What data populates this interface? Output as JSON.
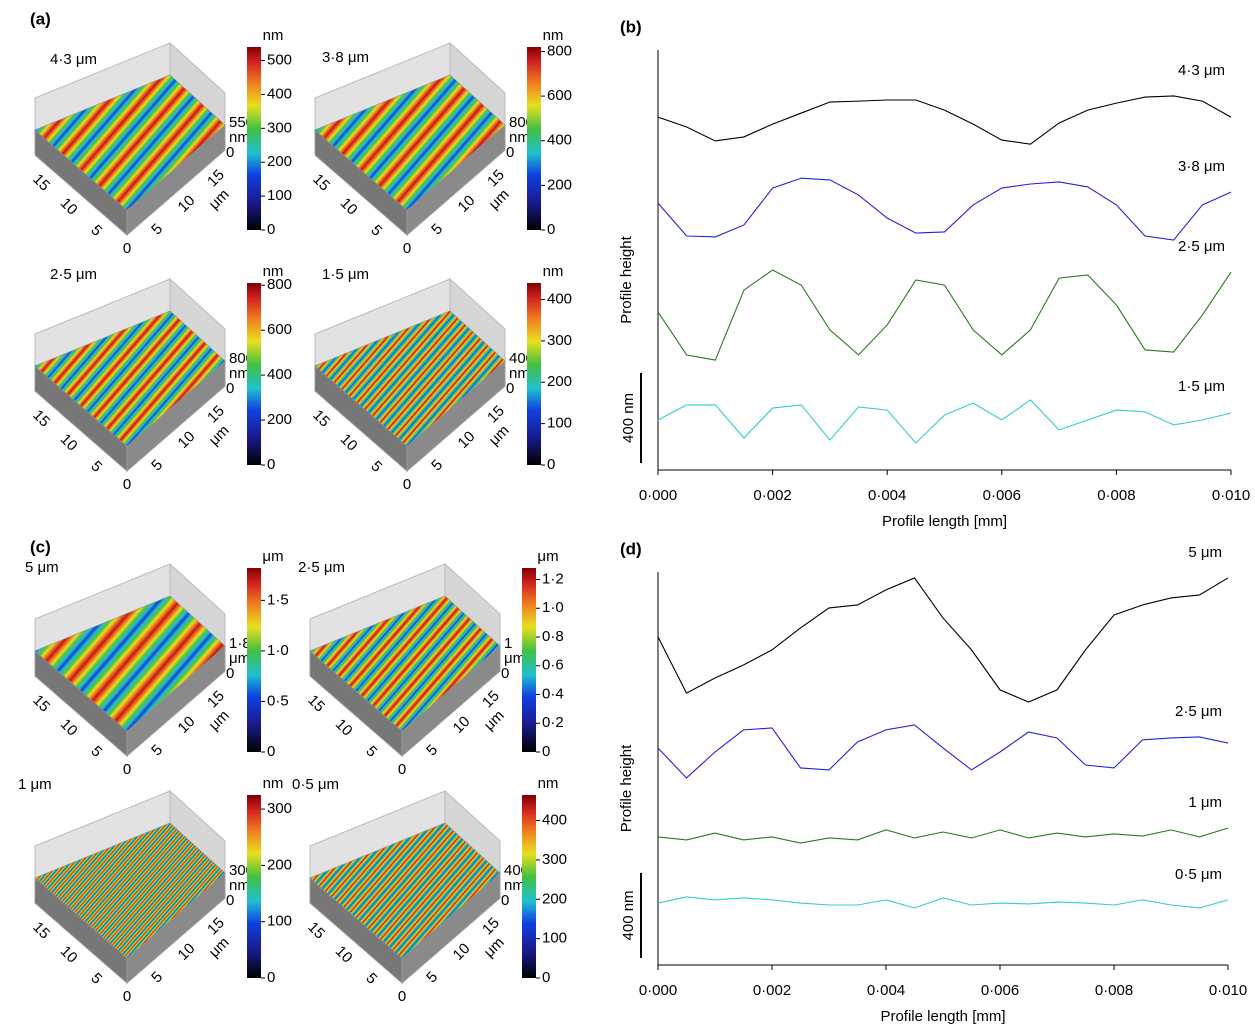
{
  "panels": [
    {
      "label": "(a)",
      "surfaces": [
        {
          "title": "4·3 μm",
          "unit": "nm",
          "lim": [
            0,
            540
          ],
          "ticks": [
            0,
            100,
            200,
            300,
            400,
            500
          ],
          "z_ticks": [
            550,
            0
          ],
          "z_unit": "nm",
          "left_ticks": [
            15,
            10,
            5
          ],
          "origin": 0,
          "right_ticks": [
            5,
            10,
            15
          ],
          "axis_unit": "μm"
        },
        {
          "title": "3·8 μm",
          "unit": "nm",
          "lim": [
            0,
            820
          ],
          "ticks": [
            0,
            200,
            400,
            600,
            800
          ],
          "z_ticks": [
            800,
            0
          ],
          "z_unit": "nm",
          "left_ticks": [
            15,
            10,
            5
          ],
          "origin": 0,
          "right_ticks": [
            5,
            10,
            15
          ],
          "axis_unit": "μm"
        },
        {
          "title": "2·5 μm",
          "unit": "nm",
          "lim": [
            0,
            810
          ],
          "ticks": [
            0,
            200,
            400,
            600,
            800
          ],
          "z_ticks": [
            800,
            0
          ],
          "z_unit": "nm",
          "left_ticks": [
            15,
            10,
            5
          ],
          "origin": 0,
          "right_ticks": [
            5,
            10,
            15
          ],
          "axis_unit": "μm"
        },
        {
          "title": "1·5 μm",
          "unit": "nm",
          "lim": [
            0,
            440
          ],
          "ticks": [
            0,
            100,
            200,
            300,
            400
          ],
          "z_ticks": [
            400,
            0
          ],
          "z_unit": "nm",
          "left_ticks": [
            15,
            10,
            5
          ],
          "origin": 0,
          "right_ticks": [
            5,
            10,
            15
          ],
          "axis_unit": "μm"
        }
      ]
    },
    {
      "label": "(c)",
      "surfaces": [
        {
          "title": "5 μm",
          "unit": "μm",
          "lim": [
            0,
            1.82
          ],
          "ticks": [
            0,
            {
              "value": 0.5,
              "label": "0·5"
            },
            {
              "value": 1.0,
              "label": "1·0"
            },
            {
              "value": 1.5,
              "label": "1·5"
            }
          ],
          "z_ticks": [
            {
              "value": 1.8,
              "label": "1·8"
            },
            0
          ],
          "z_unit": "μm",
          "left_ticks": [
            15,
            10,
            5
          ],
          "origin": 0,
          "right_ticks": [
            5,
            10,
            15
          ],
          "axis_unit": "μm"
        },
        {
          "title": "2·5 μm",
          "unit": "μm",
          "lim": [
            0,
            1.28
          ],
          "ticks": [
            0,
            {
              "value": 0.2,
              "label": "0·2"
            },
            {
              "value": 0.4,
              "label": "0·4"
            },
            {
              "value": 0.6,
              "label": "0·6"
            },
            {
              "value": 0.8,
              "label": "0·8"
            },
            {
              "value": 1.0,
              "label": "1·0"
            },
            {
              "value": 1.2,
              "label": "1·2"
            }
          ],
          "z_ticks": [
            1,
            0
          ],
          "z_unit": "μm",
          "left_ticks": [
            15,
            10,
            5
          ],
          "origin": 0,
          "right_ticks": [
            5,
            10,
            15
          ],
          "axis_unit": "μm"
        },
        {
          "title": "1 μm",
          "unit": "nm",
          "lim": [
            0,
            325
          ],
          "ticks": [
            0,
            100,
            200,
            300
          ],
          "z_ticks": [
            300,
            0
          ],
          "z_unit": "nm",
          "left_ticks": [
            15,
            10,
            5
          ],
          "origin": 0,
          "right_ticks": [
            5,
            10,
            15
          ],
          "axis_unit": "μm"
        },
        {
          "title": "0·5 μm",
          "unit": "nm",
          "lim": [
            0,
            465
          ],
          "ticks": [
            0,
            100,
            200,
            300,
            400
          ],
          "z_ticks": [
            400,
            0
          ],
          "z_unit": "nm",
          "left_ticks": [
            15,
            10,
            5
          ],
          "origin": 0,
          "right_ticks": [
            5,
            10,
            15
          ],
          "axis_unit": "μm"
        }
      ]
    }
  ],
  "chart_data": [
    {
      "type": "line",
      "panel_label": "(b)",
      "xlabel": "Profile length [mm]",
      "ylabel": "Profile height",
      "xlim": [
        0,
        0.01
      ],
      "ylim": [
        0,
        1865
      ],
      "xticks": [
        {
          "value": 0,
          "label": "0·000"
        },
        {
          "value": 0.002,
          "label": "0·002"
        },
        {
          "value": 0.004,
          "label": "0·004"
        },
        {
          "value": 0.006,
          "label": "0·006"
        },
        {
          "value": 0.008,
          "label": "0·008"
        },
        {
          "value": 0.01,
          "label": "0·010"
        }
      ],
      "scale_bar": {
        "value": 400,
        "label": "400 nm"
      },
      "x": [
        0,
        0.0005,
        0.001,
        0.0015,
        0.002,
        0.0025,
        0.003,
        0.0035,
        0.004,
        0.0045,
        0.005,
        0.0055,
        0.006,
        0.0065,
        0.007,
        0.0075,
        0.008,
        0.0085,
        0.009,
        0.0095,
        0.01
      ],
      "series": [
        {
          "name": "4·3 μm",
          "color": "#000000",
          "values": [
            1567,
            1523,
            1461,
            1479,
            1536,
            1585,
            1634,
            1638,
            1643,
            1643,
            1598,
            1536,
            1465,
            1447,
            1541,
            1598,
            1629,
            1656,
            1661,
            1638,
            1567
          ]
        },
        {
          "name": "3·8 μm",
          "color": "#2222dd",
          "values": [
            1185,
            1039,
            1035,
            1088,
            1252,
            1296,
            1288,
            1221,
            1119,
            1052,
            1057,
            1177,
            1252,
            1270,
            1279,
            1257,
            1177,
            1039,
            1021,
            1177,
            1234
          ]
        },
        {
          "name": "2·5 μm",
          "color": "#2a7a1e",
          "values": [
            702,
            511,
            488,
            799,
            888,
            821,
            622,
            511,
            644,
            844,
            821,
            622,
            511,
            622,
            852,
            866,
            733,
            533,
            524,
            688,
            879
          ]
        },
        {
          "name": "1·5 μm",
          "color": "#33cccc",
          "values": [
            222,
            289,
            289,
            142,
            275,
            289,
            133,
            280,
            266,
            120,
            244,
            297,
            222,
            311,
            178,
            222,
            266,
            258,
            200,
            222,
            253
          ]
        }
      ]
    },
    {
      "type": "line",
      "panel_label": "(d)",
      "xlabel": "Profile length [mm]",
      "ylabel": "Profile height",
      "xlim": [
        0,
        0.01
      ],
      "ylim": [
        0,
        1847
      ],
      "xticks": [
        {
          "value": 0,
          "label": "0·000"
        },
        {
          "value": 0.002,
          "label": "0·002"
        },
        {
          "value": 0.004,
          "label": "0·004"
        },
        {
          "value": 0.006,
          "label": "0·006"
        },
        {
          "value": 0.008,
          "label": "0·008"
        },
        {
          "value": 0.01,
          "label": "0·010"
        }
      ],
      "scale_bar": {
        "value": 400,
        "label": "400 nm"
      },
      "x": [
        0,
        0.0005,
        0.001,
        0.0015,
        0.002,
        0.0025,
        0.003,
        0.0035,
        0.004,
        0.0045,
        0.005,
        0.0055,
        0.006,
        0.0065,
        0.007,
        0.0075,
        0.008,
        0.0085,
        0.009,
        0.0095,
        0.01
      ],
      "series": [
        {
          "name": "5 μm",
          "color": "#000000",
          "values": [
            1542,
            1278,
            1349,
            1410,
            1481,
            1584,
            1678,
            1692,
            1763,
            1819,
            1631,
            1481,
            1293,
            1236,
            1293,
            1481,
            1645,
            1692,
            1725,
            1739,
            1819
          ]
        },
        {
          "name": "2·5 μm",
          "color": "#2222dd",
          "values": [
            1020,
            879,
            1001,
            1105,
            1114,
            926,
            917,
            1048,
            1105,
            1128,
            1020,
            917,
            1001,
            1095,
            1067,
            940,
            926,
            1058,
            1067,
            1072,
            1043
          ]
        },
        {
          "name": "1 μm",
          "color": "#2a7a1e",
          "values": [
            602,
            588,
            620,
            588,
            602,
            573,
            597,
            588,
            635,
            597,
            625,
            597,
            635,
            597,
            620,
            602,
            616,
            606,
            635,
            602,
            644
          ]
        },
        {
          "name": "0·5 μm",
          "color": "#33cccc",
          "values": [
            291,
            320,
            306,
            315,
            306,
            291,
            282,
            282,
            306,
            268,
            315,
            282,
            291,
            287,
            296,
            291,
            282,
            306,
            282,
            268,
            306
          ]
        }
      ]
    }
  ]
}
